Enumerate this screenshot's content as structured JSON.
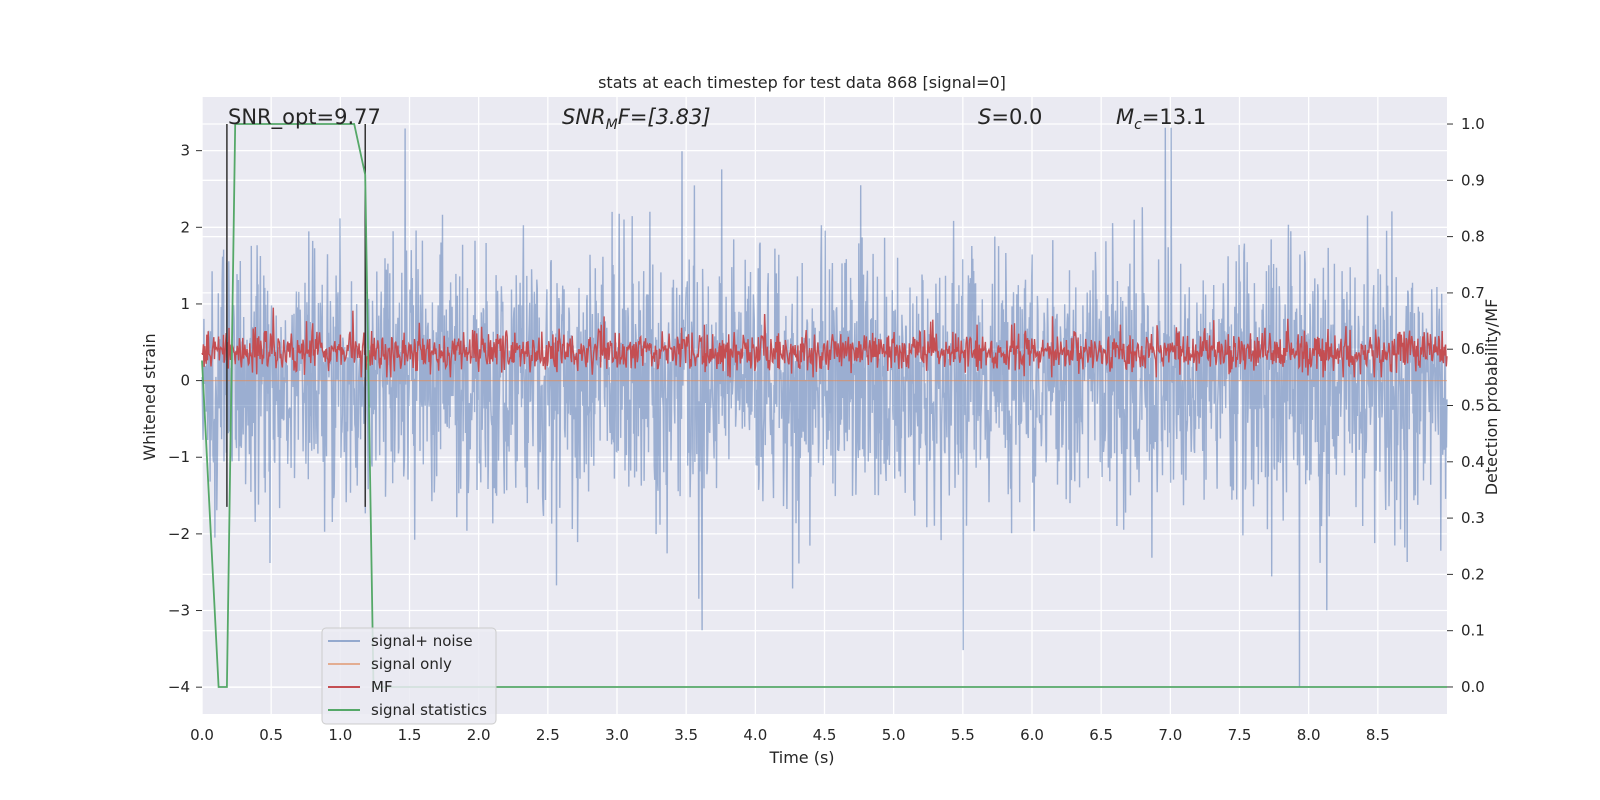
{
  "chart_data": {
    "type": "line",
    "title": "stats at each timestep for test data 868 [signal=0]",
    "xlabel": "Time (s)",
    "ylabel": "Whitened strain",
    "y2label": "Detection probability/MF",
    "xlim": [
      0.0,
      9.0
    ],
    "ylim": [
      -4.35,
      3.7
    ],
    "y2lim": [
      -0.048,
      1.048
    ],
    "grid": true,
    "x_ticks": [
      0.0,
      0.5,
      1.0,
      1.5,
      2.0,
      2.5,
      3.0,
      3.5,
      4.0,
      4.5,
      5.0,
      5.5,
      6.0,
      6.5,
      7.0,
      7.5,
      8.0,
      8.5
    ],
    "x_tick_labels": [
      "0.0",
      "0.5",
      "1.0",
      "1.5",
      "2.0",
      "2.5",
      "3.0",
      "3.5",
      "4.0",
      "4.5",
      "5.0",
      "5.5",
      "6.0",
      "6.5",
      "7.0",
      "7.5",
      "8.0",
      "8.5"
    ],
    "y_ticks": [
      3,
      2,
      1,
      0,
      -1,
      -2,
      -3,
      -4
    ],
    "y_tick_labels": [
      "3",
      "2",
      "1",
      "0",
      "−1",
      "−2",
      "−3",
      "−4"
    ],
    "y2_ticks": [
      1.0,
      0.9,
      0.8,
      0.7,
      0.6,
      0.5,
      0.4,
      0.3,
      0.2,
      0.1,
      0.0
    ],
    "y2_tick_labels": [
      "1.0",
      "0.9",
      "0.8",
      "0.7",
      "0.6",
      "0.5",
      "0.4",
      "0.3",
      "0.2",
      "0.1",
      "0.0"
    ],
    "annotations": {
      "snr_opt": "SNR_opt=9.77",
      "snr_mf_name": "SNR",
      "snr_mf_sub": "M",
      "snr_mf_rest": "F=[3.83]",
      "s_name": "S",
      "s_rest": "=0.0",
      "mc_name": "M",
      "mc_sub": "c",
      "mc_rest": "=13.1"
    },
    "vlines": [
      0.18,
      1.18
    ],
    "legend": {
      "placement": "lower-left",
      "entries": [
        "signal+ noise",
        "signal only",
        "MF",
        "signal statistics"
      ]
    },
    "colors": {
      "noise": "#4c72b0",
      "signal_only": "#dd8452",
      "mf": "#c44e52",
      "stats": "#55a868",
      "vline": "#333333",
      "plot_bg": "#eaeaf2"
    },
    "series": [
      {
        "name": "signal statistics",
        "axis": "right",
        "x": [
          0.0,
          0.12,
          0.18,
          0.24,
          1.1,
          1.18,
          1.24,
          1.3,
          9.0
        ],
        "values": [
          0.58,
          0.0,
          0.0,
          1.0,
          1.0,
          0.91,
          0.0,
          0.0,
          0.0
        ]
      },
      {
        "name": "signal+ noise",
        "axis": "left",
        "generated": "dense noise trace, ~ +/-1.5 typical, peaks up to 3.3 / -4.0"
      },
      {
        "name": "MF",
        "axis": "right",
        "generated": "dense trace between 0.55 and 0.68"
      },
      {
        "name": "signal only",
        "axis": "left",
        "generated": "flat near 0"
      }
    ]
  }
}
